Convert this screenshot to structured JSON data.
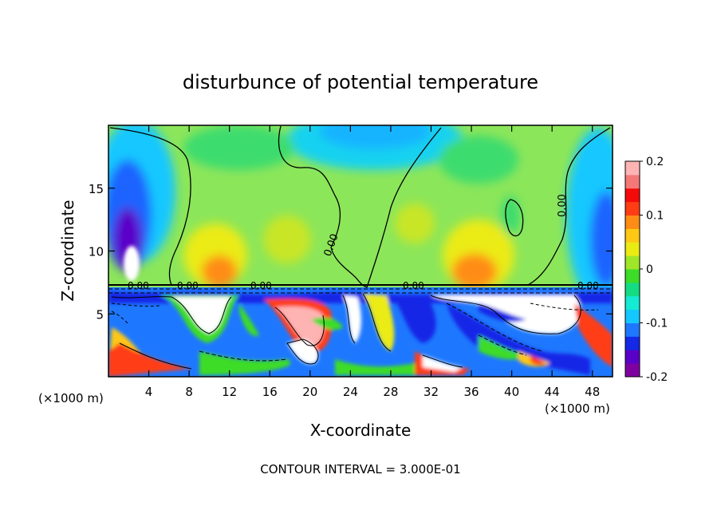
{
  "chart_data": {
    "type": "heatmap",
    "title": "disturbunce of potential temperature",
    "xlabel": "X-coordinate",
    "ylabel": "Z-coordinate",
    "x_unit_left": "(×1000 m)",
    "x_unit_right": "(×1000 m)",
    "xlim": [
      0,
      50
    ],
    "ylim": [
      0,
      20
    ],
    "xticks": [
      4,
      8,
      12,
      16,
      20,
      24,
      28,
      32,
      36,
      40,
      44,
      48
    ],
    "yticks": [
      5,
      10,
      15
    ],
    "colorbar": {
      "range": [
        -0.2,
        0.2
      ],
      "tick_labels": [
        "0.2",
        "0.1",
        "0",
        "-0.1",
        "-0.2"
      ],
      "tick_values": [
        0.2,
        0.1,
        0,
        -0.1,
        -0.2
      ],
      "colors": [
        "#7f00a0",
        "#5a00c8",
        "#1428e6",
        "#1e78ff",
        "#14c8ff",
        "#14ebd2",
        "#14dc82",
        "#3cdc28",
        "#a0e628",
        "#ebeb14",
        "#ffc814",
        "#ff8c14",
        "#ff3c14",
        "#f50a0a",
        "#f57878",
        "#ffb4b4"
      ]
    },
    "contour_labels": [
      "0.00",
      "0.00",
      "0.00",
      "0.00",
      "0.00",
      "0.00",
      "0.00"
    ],
    "footer": "CONTOUR INTERVAL = 3.000E-01"
  }
}
